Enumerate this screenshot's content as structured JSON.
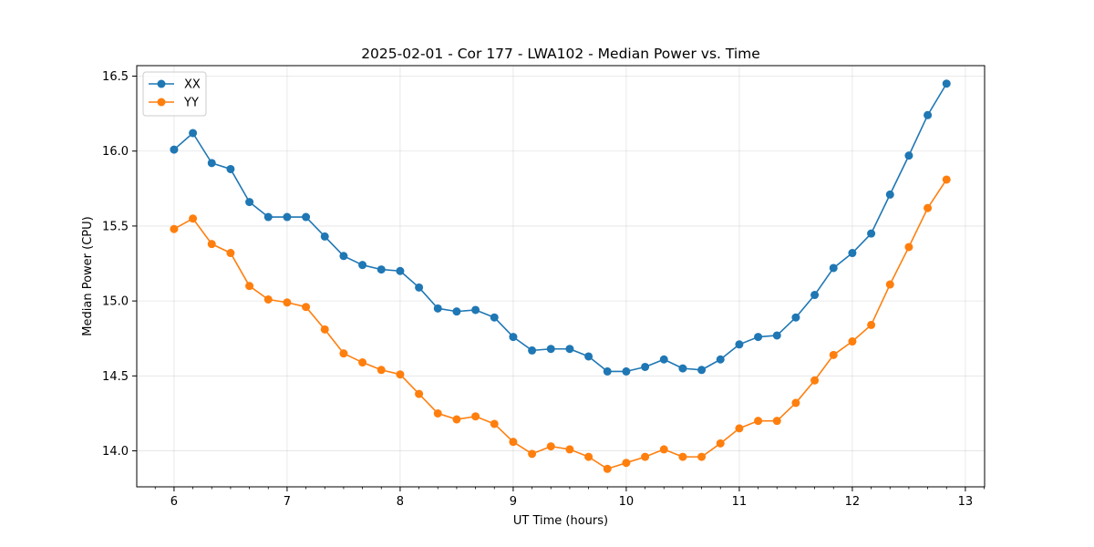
{
  "chart_data": {
    "type": "line",
    "title": "2025-02-01 - Cor 177 - LWA102 - Median Power vs. Time",
    "xlabel": "UT Time (hours)",
    "ylabel": "Median Power (CPU)",
    "xlim": [
      5.67,
      13.17
    ],
    "ylim": [
      13.76,
      16.57
    ],
    "xticks": [
      6,
      7,
      8,
      9,
      10,
      11,
      12,
      13
    ],
    "xtick_labels": [
      "6",
      "7",
      "8",
      "9",
      "10",
      "11",
      "12",
      "13"
    ],
    "yticks": [
      14.0,
      14.5,
      15.0,
      15.5,
      16.0,
      16.5
    ],
    "ytick_labels": [
      "14.0",
      "14.5",
      "15.0",
      "15.5",
      "16.0",
      "16.5"
    ],
    "grid": true,
    "legend": "top-left",
    "x": [
      6.0,
      6.1667,
      6.3333,
      6.5,
      6.6667,
      6.8333,
      7.0,
      7.1667,
      7.3333,
      7.5,
      7.6667,
      7.8333,
      8.0,
      8.1667,
      8.3333,
      8.5,
      8.6667,
      8.8333,
      9.0,
      9.1667,
      9.3333,
      9.5,
      9.6667,
      9.8333,
      10.0,
      10.1667,
      10.3333,
      10.5,
      10.6667,
      10.8333,
      11.0,
      11.1667,
      11.3333,
      11.5,
      11.6667,
      11.8333,
      12.0,
      12.1667,
      12.3333,
      12.5,
      12.6667,
      12.8333
    ],
    "series": [
      {
        "name": "XX",
        "color": "#1f77b4",
        "values": [
          16.01,
          16.12,
          15.92,
          15.88,
          15.66,
          15.56,
          15.56,
          15.56,
          15.43,
          15.3,
          15.24,
          15.21,
          15.2,
          15.09,
          14.95,
          14.93,
          14.94,
          14.89,
          14.76,
          14.67,
          14.68,
          14.68,
          14.63,
          14.53,
          14.53,
          14.56,
          14.61,
          14.55,
          14.54,
          14.61,
          14.71,
          14.76,
          14.77,
          14.89,
          15.04,
          15.22,
          15.32,
          15.45,
          15.71,
          15.97,
          16.24,
          16.45
        ]
      },
      {
        "name": "YY",
        "color": "#ff7f0e",
        "values": [
          15.48,
          15.55,
          15.38,
          15.32,
          15.1,
          15.01,
          14.99,
          14.96,
          14.81,
          14.65,
          14.59,
          14.54,
          14.51,
          14.38,
          14.25,
          14.21,
          14.23,
          14.18,
          14.06,
          13.98,
          14.03,
          14.01,
          13.96,
          13.88,
          13.92,
          13.96,
          14.01,
          13.96,
          13.96,
          14.05,
          14.15,
          14.2,
          14.2,
          14.32,
          14.47,
          14.64,
          14.73,
          14.84,
          15.11,
          15.36,
          15.62,
          15.81
        ]
      }
    ]
  }
}
